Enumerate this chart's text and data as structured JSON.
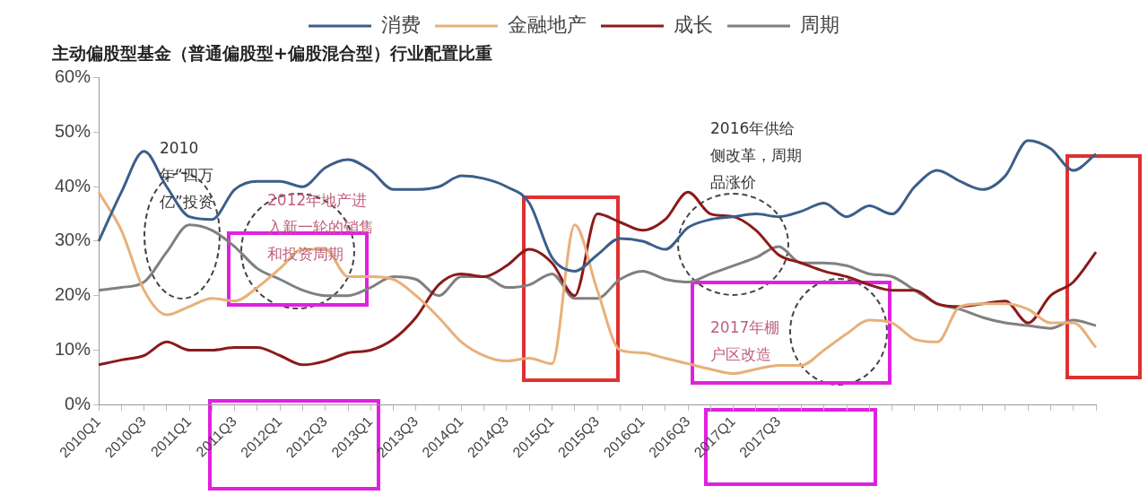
{
  "chart_data": {
    "type": "line",
    "title": "主动偏股型基金（普通偏股型+偏股混合型）行业配置比重",
    "categories": [
      "2010Q1",
      null,
      "2010Q3",
      null,
      "2011Q1",
      null,
      "2011Q3",
      null,
      "2012Q1",
      null,
      "2012Q3",
      null,
      "2013Q1",
      null,
      "2013Q3",
      null,
      "2014Q1",
      null,
      "2014Q3",
      null,
      "2015Q1",
      null,
      "2015Q3",
      null,
      "2016Q1",
      null,
      "2016Q3",
      null,
      "2017Q1",
      null,
      "2017Q3",
      null,
      null,
      null,
      null,
      null,
      null,
      null,
      null,
      null,
      null,
      null,
      null,
      null,
      null
    ],
    "series": [
      {
        "name": "消费",
        "color": "#3b5f8a",
        "values": [
          30,
          39,
          46.5,
          40,
          34.5,
          34,
          39.5,
          41,
          41,
          40,
          43.5,
          45,
          43,
          39.5,
          39.5,
          40,
          42,
          41.5,
          40,
          37,
          27,
          24.5,
          27.5,
          30.5,
          30,
          28.5,
          32.5,
          34,
          34.5,
          35,
          34.5,
          35.5,
          37,
          34.5,
          36.5,
          35,
          40,
          43,
          41,
          39.5,
          42,
          48.5,
          47,
          43,
          46
        ]
      },
      {
        "name": "金融地产",
        "color": "#e8b07a",
        "values": [
          39,
          32,
          21,
          16.5,
          18,
          19.5,
          19,
          21.5,
          25,
          28.5,
          28.5,
          23.5,
          23.5,
          23,
          20,
          16,
          11.5,
          9,
          8,
          8.5,
          7.5,
          33,
          21,
          10,
          9.5,
          8.5,
          7.5,
          6.5,
          5.7,
          6.5,
          7.2,
          7.2,
          10,
          13,
          15.5,
          15,
          12,
          11.5,
          18,
          18.5,
          18.5,
          17.5,
          15,
          15,
          10.5
        ]
      },
      {
        "name": "成长",
        "color": "#8b1a1a",
        "values": [
          7.3,
          8.2,
          9,
          11.5,
          10,
          10,
          10.5,
          10.5,
          9,
          7.3,
          8,
          9.5,
          10,
          12,
          16,
          22,
          24,
          23.5,
          25.5,
          28.5,
          26,
          20,
          35,
          33.5,
          32,
          34,
          39,
          35,
          34.5,
          32,
          27.5,
          26,
          24.5,
          23.5,
          22,
          21,
          21,
          18.5,
          18,
          18.5,
          19,
          15,
          20,
          22.5,
          28
        ]
      },
      {
        "name": "周期",
        "color": "#808080",
        "values": [
          21,
          21.5,
          22.5,
          28,
          33,
          32,
          29,
          25,
          23,
          21,
          20,
          20,
          21.5,
          23.5,
          23,
          20,
          23.5,
          23.5,
          21.5,
          22,
          24,
          19.5,
          19.5,
          23,
          24.5,
          23,
          22.5,
          24,
          25.5,
          27,
          29,
          26,
          26,
          25.5,
          24,
          23.5,
          21,
          18.5,
          17.5,
          16,
          15,
          14.5,
          14,
          15.5,
          14.5
        ]
      }
    ],
    "ylim": [
      0,
      60
    ],
    "yticks": [
      {
        "value": 0,
        "label": "0%"
      },
      {
        "value": 10,
        "label": "10%"
      },
      {
        "value": 20,
        "label": "20%"
      },
      {
        "value": 30,
        "label": "30%"
      },
      {
        "value": 40,
        "label": "40%"
      },
      {
        "value": 50,
        "label": "50%"
      },
      {
        "value": 60,
        "label": "60%"
      }
    ],
    "legend": "top",
    "marker": "none",
    "line_style": "solid",
    "annotations": [
      "2010年“四万亿”投资",
      "2012年地产进入新一轮的销售和投资周期",
      "2016年供给侧改革，周期品涨价",
      "2017年棚户区改造"
    ]
  }
}
